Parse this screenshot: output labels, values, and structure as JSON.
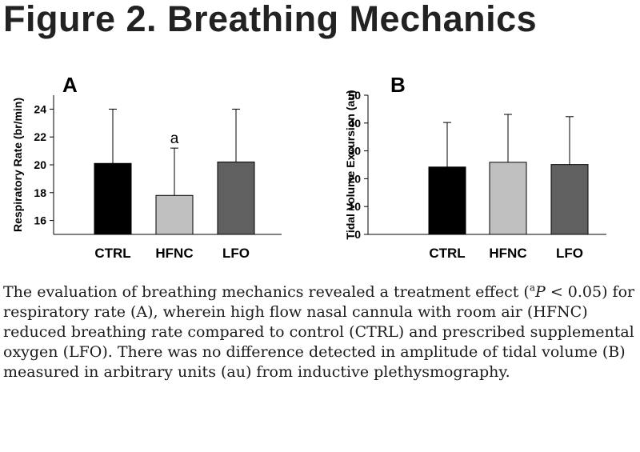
{
  "title": "Figure 2.  Breathing Mechanics",
  "colors": {
    "CTRL": "#000000",
    "HFNC": "#c0c0c0",
    "LFO": "#606060",
    "axis": "#000000"
  },
  "chart_data": [
    {
      "panel": "A",
      "type": "bar",
      "categories": [
        "CTRL",
        "HFNC",
        "LFO"
      ],
      "values": [
        20.1,
        17.8,
        20.2
      ],
      "errors": [
        3.9,
        3.4,
        3.8
      ],
      "annotations": [
        "",
        "a",
        ""
      ],
      "ylabel": "Respiratory Rate (br/min)",
      "xlabel": "",
      "ylim": [
        15,
        25
      ],
      "yticks": [
        16,
        18,
        20,
        22,
        24
      ],
      "grid": false
    },
    {
      "panel": "B",
      "type": "bar",
      "categories": [
        "CTRL",
        "HFNC",
        "LFO"
      ],
      "values": [
        24.2,
        25.9,
        25.1
      ],
      "errors": [
        16.0,
        17.2,
        17.2
      ],
      "annotations": [
        "",
        "",
        ""
      ],
      "ylabel": "Tidal Volume Excursion (au)",
      "xlabel": "",
      "ylim": [
        0,
        50
      ],
      "yticks": [
        0,
        10,
        20,
        30,
        40,
        50
      ],
      "grid": false
    }
  ],
  "caption": {
    "part1": "The evaluation of breathing mechanics revealed a treatment effect (",
    "sup": "a",
    "italic": "P",
    "part2": " < 0.05) for respiratory rate (A), wherein high flow nasal cannula with room air (HFNC) reduced breathing rate compared to control (CTRL) and prescribed supplemental oxygen (LFO).   There was no difference detected in amplitude of tidal volume (B) measured in arbitrary units (au) from inductive plethysmography."
  }
}
